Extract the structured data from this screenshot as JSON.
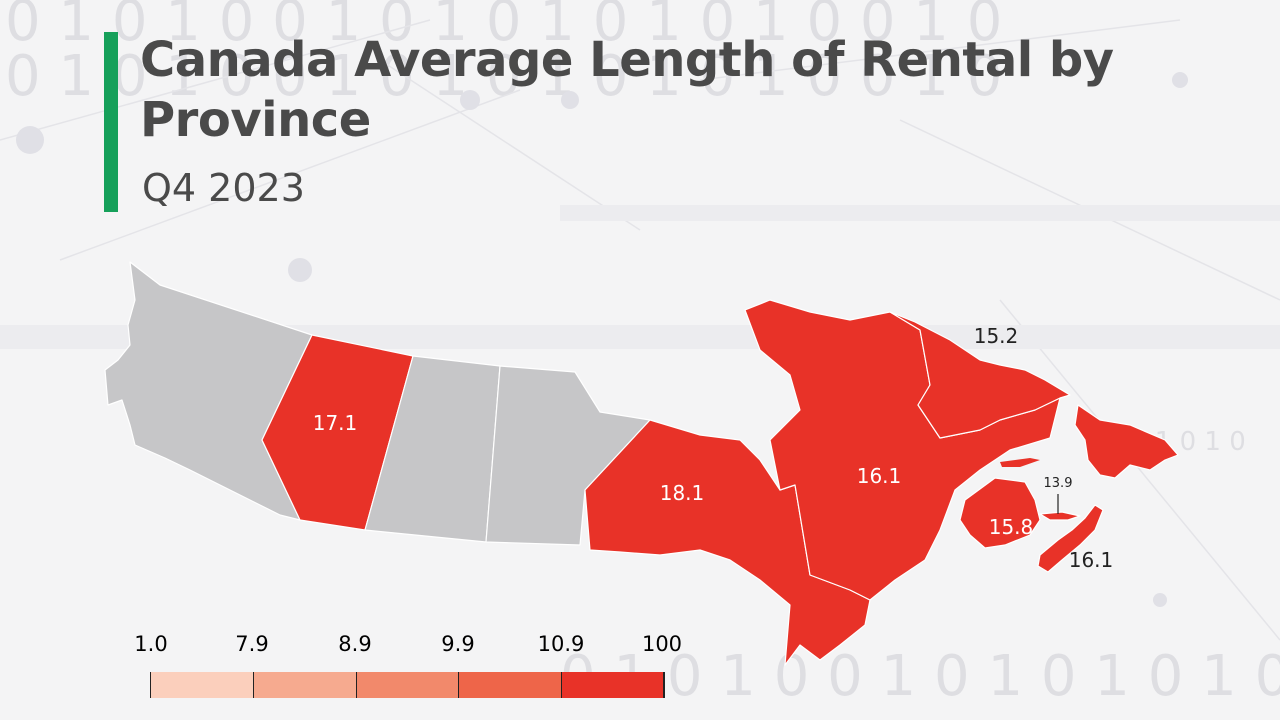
{
  "header": {
    "title": "Canada Average Length of Rental by Province",
    "subtitle": "Q4 2023",
    "accent_color": "#16a05a",
    "title_color": "#4a4a4a"
  },
  "map_data": {
    "type": "choropleth",
    "no_data_color": "#c6c6c8",
    "region_border_color": "#ffffff",
    "regions": [
      {
        "name": "British Columbia",
        "value": null,
        "label": ""
      },
      {
        "name": "Alberta",
        "value": 17.1,
        "label": "17.1"
      },
      {
        "name": "Saskatchewan",
        "value": null,
        "label": ""
      },
      {
        "name": "Manitoba",
        "value": null,
        "label": ""
      },
      {
        "name": "Ontario",
        "value": 18.1,
        "label": "18.1"
      },
      {
        "name": "Quebec",
        "value": 16.1,
        "label": "16.1"
      },
      {
        "name": "Newfoundland and Labrador",
        "value": 15.2,
        "label": "15.2"
      },
      {
        "name": "New Brunswick",
        "value": 15.8,
        "label": "15.8"
      },
      {
        "name": "Prince Edward Island",
        "value": 13.9,
        "label": "13.9"
      },
      {
        "name": "Nova Scotia",
        "value": 16.1,
        "label": "16.1"
      }
    ]
  },
  "legend": {
    "ticks": [
      "1.0",
      "7.9",
      "8.9",
      "9.9",
      "10.9",
      "100"
    ],
    "colors": [
      "#fbcfbc",
      "#f6aa8f",
      "#f2896b",
      "#ee6549",
      "#e83228"
    ]
  }
}
